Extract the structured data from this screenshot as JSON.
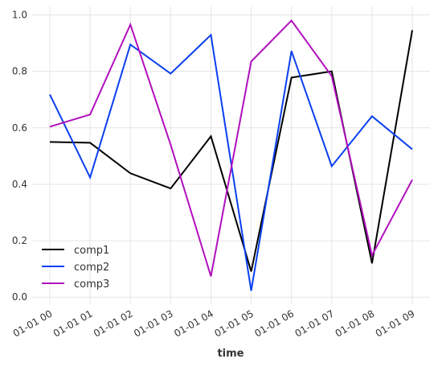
{
  "chart_data": {
    "type": "line",
    "x_label": "time",
    "categories": [
      "01-01 00",
      "01-01 01",
      "01-01 02",
      "01-01 03",
      "01-01 04",
      "01-01 05",
      "01-01 06",
      "01-01 07",
      "01-01 08",
      "01-01 09"
    ],
    "series": [
      {
        "name": "comp1",
        "color": "#000000",
        "values": [
          0.55,
          0.547,
          0.439,
          0.385,
          0.57,
          0.091,
          0.778,
          0.8,
          0.12,
          0.946
        ]
      },
      {
        "name": "comp2",
        "color": "#0a3ff0",
        "values": [
          0.718,
          0.424,
          0.895,
          0.792,
          0.929,
          0.023,
          0.872,
          0.464,
          0.641,
          0.524
        ]
      },
      {
        "name": "comp3",
        "color": "#b10fbd",
        "values": [
          0.604,
          0.647,
          0.966,
          0.54,
          0.074,
          0.835,
          0.98,
          0.783,
          0.148,
          0.416
        ]
      }
    ],
    "ylim": [
      -0.025,
      1.03
    ],
    "yticks": [
      {
        "value": 0,
        "label": "0.0"
      },
      {
        "value": 0.2,
        "label": "0.2"
      },
      {
        "value": 0.4,
        "label": "0.4"
      },
      {
        "value": 0.6,
        "label": "0.6"
      },
      {
        "value": 0.8,
        "label": "0.8"
      },
      {
        "value": 1,
        "label": "1.0"
      }
    ],
    "grid": true,
    "legend": "lower-left"
  }
}
